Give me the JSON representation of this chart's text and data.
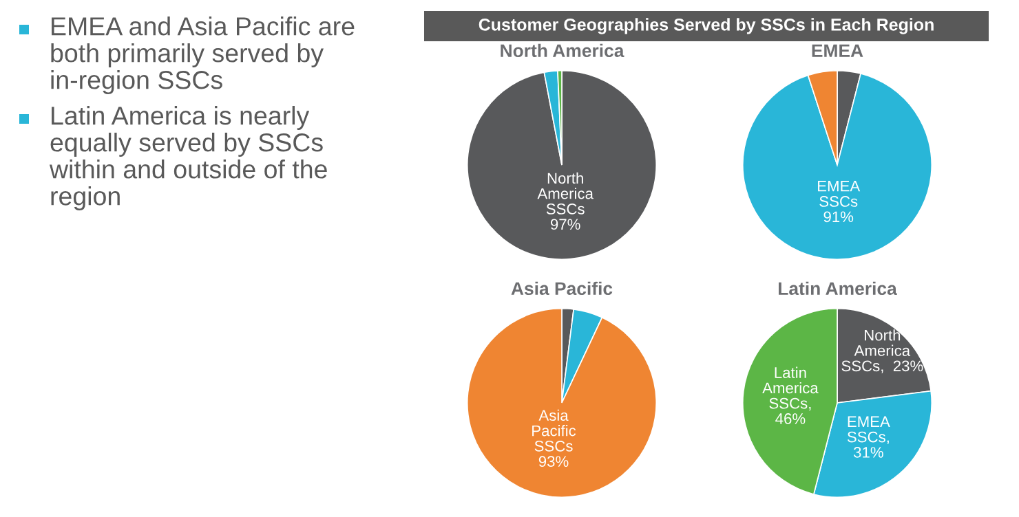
{
  "chart_data": [
    {
      "type": "other",
      "title": "Customer Geographies Served by SSCs in Each Region",
      "annotations": [
        "EMEA and Asia Pacific are\nboth primarily served by\nin-region SSCs",
        "Latin America is nearly\nequally served by SSCs\nwithin and outside of the\nregion"
      ]
    },
    {
      "type": "pie",
      "title": "North America",
      "categories": [
        null,
        null,
        null
      ],
      "values": [
        97,
        2.3,
        0.7
      ],
      "colors": [
        "#58595b",
        "#29b6d8",
        "#5cb646"
      ],
      "value_labels": [
        "North\nAmerica\nSSCs\n97%",
        null,
        null
      ]
    },
    {
      "type": "pie",
      "title": "EMEA",
      "categories": [
        null,
        null,
        null
      ],
      "values": [
        4,
        91,
        5
      ],
      "colors": [
        "#58595b",
        "#29b6d8",
        "#ef8532"
      ],
      "value_labels": [
        null,
        "EMEA\nSSCs\n91%",
        null
      ]
    },
    {
      "type": "pie",
      "title": "Asia Pacific",
      "categories": [
        null,
        null,
        null
      ],
      "values": [
        2,
        5,
        93
      ],
      "colors": [
        "#58595b",
        "#29b6d8",
        "#ef8532"
      ],
      "value_labels": [
        null,
        null,
        "Asia\nPacific\nSSCs\n93%"
      ]
    },
    {
      "type": "pie",
      "title": "Latin America",
      "categories": [
        null,
        null,
        null
      ],
      "values": [
        23,
        31,
        46
      ],
      "colors": [
        "#58595b",
        "#29b6d8",
        "#5cb646"
      ],
      "value_labels": [
        "North\nAmerica\nSSCs,  23%",
        "EMEA\nSSCs,\n31%",
        "Latin\nAmerica\nSSCs,\n46%"
      ]
    }
  ]
}
